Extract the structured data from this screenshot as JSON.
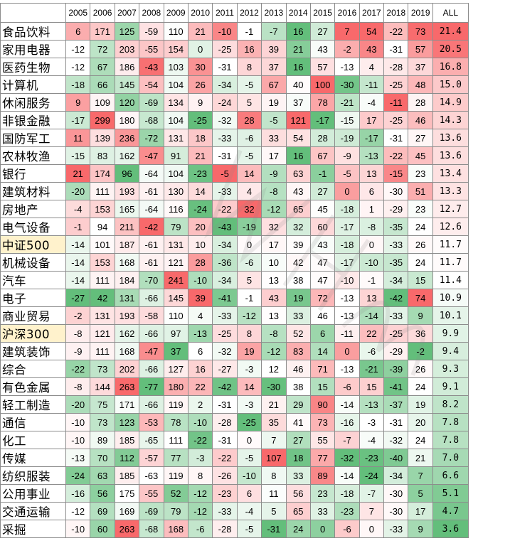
{
  "chart_data": {
    "type": "heatmap",
    "columns": [
      "2005",
      "2006",
      "2007",
      "2008",
      "2009",
      "2010",
      "2011",
      "2012",
      "2013",
      "2014",
      "2015",
      "2016",
      "2017",
      "2018",
      "2019",
      "ALL"
    ],
    "rows": [
      {
        "label": "食品饮料",
        "values": [
          6,
          171,
          125,
          -59,
          110,
          21,
          -10,
          -1,
          -7,
          16,
          27,
          7,
          54,
          -22,
          73
        ],
        "all": "21.4"
      },
      {
        "label": "家用电器",
        "values": [
          -12,
          72,
          203,
          -55,
          154,
          0,
          -25,
          16,
          39,
          21,
          43,
          -2,
          43,
          -31,
          57
        ],
        "all": "20.5"
      },
      {
        "label": "医药生物",
        "values": [
          -12,
          67,
          186,
          -43,
          103,
          30,
          -31,
          8,
          37,
          16,
          57,
          -13,
          4,
          -28,
          37
        ],
        "all": "16.8"
      },
      {
        "label": "计算机",
        "values": [
          -18,
          66,
          145,
          -54,
          104,
          26,
          -34,
          -5,
          67,
          40,
          100,
          -30,
          -11,
          -25,
          48
        ],
        "all": "15.0"
      },
      {
        "label": "休闲服务",
        "values": [
          9,
          109,
          120,
          -69,
          134,
          9,
          -24,
          5,
          19,
          37,
          78,
          -21,
          -4,
          -11,
          28
        ],
        "all": "14.9"
      },
      {
        "label": "非银金融",
        "values": [
          -17,
          299,
          180,
          -68,
          104,
          -25,
          -32,
          28,
          -5,
          121,
          -17,
          -15,
          17,
          -25,
          46
        ],
        "all": "14.3"
      },
      {
        "label": "国防军工",
        "values": [
          11,
          139,
          236,
          -72,
          131,
          18,
          -33,
          -6,
          33,
          54,
          28,
          -19,
          -17,
          -31,
          27
        ],
        "all": "13.6"
      },
      {
        "label": "农林牧渔",
        "values": [
          -15,
          83,
          162,
          -47,
          91,
          21,
          -31,
          -5,
          17,
          16,
          67,
          -9,
          -13,
          -22,
          45
        ],
        "all": "13.6"
      },
      {
        "label": "银行",
        "values": [
          21,
          174,
          96,
          -64,
          104,
          -23,
          -5,
          14,
          -9,
          63,
          -1,
          -5,
          13,
          -15,
          23
        ],
        "all": "13.4"
      },
      {
        "label": "建筑材料",
        "values": [
          -20,
          111,
          193,
          -61,
          130,
          14,
          -33,
          4,
          -8,
          43,
          27,
          0,
          6,
          -30,
          51
        ],
        "all": "13.3"
      },
      {
        "label": "房地产",
        "values": [
          -4,
          153,
          165,
          -64,
          116,
          -24,
          -22,
          32,
          -12,
          65,
          45,
          -18,
          1,
          -29,
          23
        ],
        "all": "12.7"
      },
      {
        "label": "电气设备",
        "values": [
          -1,
          94,
          211,
          -42,
          79,
          20,
          -43,
          -19,
          32,
          32,
          60,
          -17,
          -8,
          -35,
          24
        ],
        "all": "12.6"
      },
      {
        "label": "中证500",
        "values": [
          -14,
          101,
          187,
          -61,
          131,
          10,
          -34,
          0,
          17,
          39,
          43,
          -18,
          0,
          -33,
          26
        ],
        "all": "11.7",
        "highlight": true
      },
      {
        "label": "机械设备",
        "values": [
          -14,
          153,
          168,
          -61,
          121,
          28,
          -36,
          -6,
          10,
          42,
          47,
          -17,
          -10,
          -35,
          24
        ],
        "all": "11.7"
      },
      {
        "label": "汽车",
        "values": [
          -14,
          111,
          184,
          -70,
          241,
          -10,
          -34,
          5,
          13,
          38,
          47,
          -10,
          -1,
          -34,
          15
        ],
        "all": "11.4"
      },
      {
        "label": "电子",
        "values": [
          -27,
          42,
          131,
          -66,
          145,
          39,
          -41,
          -1,
          43,
          19,
          72,
          -13,
          13,
          -42,
          74
        ],
        "all": "10.9"
      },
      {
        "label": "商业贸易",
        "values": [
          -2,
          131,
          193,
          -58,
          110,
          4,
          -33,
          -12,
          13,
          33,
          46,
          -13,
          -14,
          -33,
          9
        ],
        "all": "10.1"
      },
      {
        "label": "沪深300",
        "values": [
          -8,
          121,
          162,
          -66,
          97,
          -13,
          -25,
          8,
          -8,
          52,
          6,
          -11,
          22,
          -25,
          36
        ],
        "all": "9.9",
        "highlight": true
      },
      {
        "label": "建筑装饰",
        "values": [
          -9,
          111,
          168,
          -47,
          37,
          6,
          -32,
          19,
          -12,
          83,
          14,
          0,
          -6,
          -29,
          -2
        ],
        "all": "9.4"
      },
      {
        "label": "综合",
        "values": [
          -22,
          73,
          202,
          -66,
          127,
          16,
          -27,
          -3,
          12,
          46,
          71,
          -13,
          -21,
          -39,
          26
        ],
        "all": "9.3"
      },
      {
        "label": "有色金属",
        "values": [
          -8,
          144,
          263,
          -77,
          180,
          22,
          -42,
          14,
          -30,
          38,
          15,
          -6,
          15,
          -41,
          24
        ],
        "all": "9.1"
      },
      {
        "label": "轻工制造",
        "values": [
          -20,
          75,
          171,
          -66,
          119,
          2,
          -31,
          -3,
          21,
          29,
          90,
          -14,
          -13,
          -37,
          19
        ],
        "all": "8.2"
      },
      {
        "label": "通信",
        "values": [
          -10,
          73,
          123,
          -53,
          78,
          -10,
          -28,
          -25,
          35,
          41,
          73,
          -16,
          -3,
          -31,
          20
        ],
        "all": "7.8"
      },
      {
        "label": "化工",
        "values": [
          -10,
          89,
          185,
          -65,
          111,
          -22,
          -31,
          0,
          7,
          27,
          55,
          -7,
          -4,
          -32,
          24
        ],
        "all": "7.8"
      },
      {
        "label": "传媒",
        "values": [
          -13,
          70,
          112,
          -57,
          77,
          -3,
          -22,
          -5,
          107,
          18,
          77,
          -32,
          -23,
          -40,
          21
        ],
        "all": "7.0"
      },
      {
        "label": "纺织服装",
        "values": [
          -24,
          63,
          185,
          -63,
          119,
          8,
          -26,
          -10,
          8,
          33,
          89,
          -14,
          -24,
          -34,
          7
        ],
        "all": "6.6"
      },
      {
        "label": "公用事业",
        "values": [
          -16,
          56,
          175,
          -55,
          52,
          -12,
          -23,
          6,
          11,
          56,
          23,
          -18,
          -7,
          -30,
          5
        ],
        "all": "5.1"
      },
      {
        "label": "交通运输",
        "values": [
          -12,
          69,
          169,
          -69,
          79,
          -12,
          -33,
          -4,
          5,
          65,
          33,
          -23,
          7,
          -30,
          17
        ],
        "all": "4.7"
      },
      {
        "label": "采掘",
        "values": [
          -10,
          60,
          263,
          -68,
          168,
          -6,
          -28,
          -5,
          -31,
          24,
          0,
          -6,
          0,
          -33,
          9
        ],
        "all": "3.6"
      }
    ],
    "colors": {
      "high": "#f8696b",
      "mid": "#ffffff",
      "low": "#63be7b",
      "highlight_label_bg": "#fff2cc"
    },
    "color_scale": "per-column red (high) to green (low)"
  }
}
